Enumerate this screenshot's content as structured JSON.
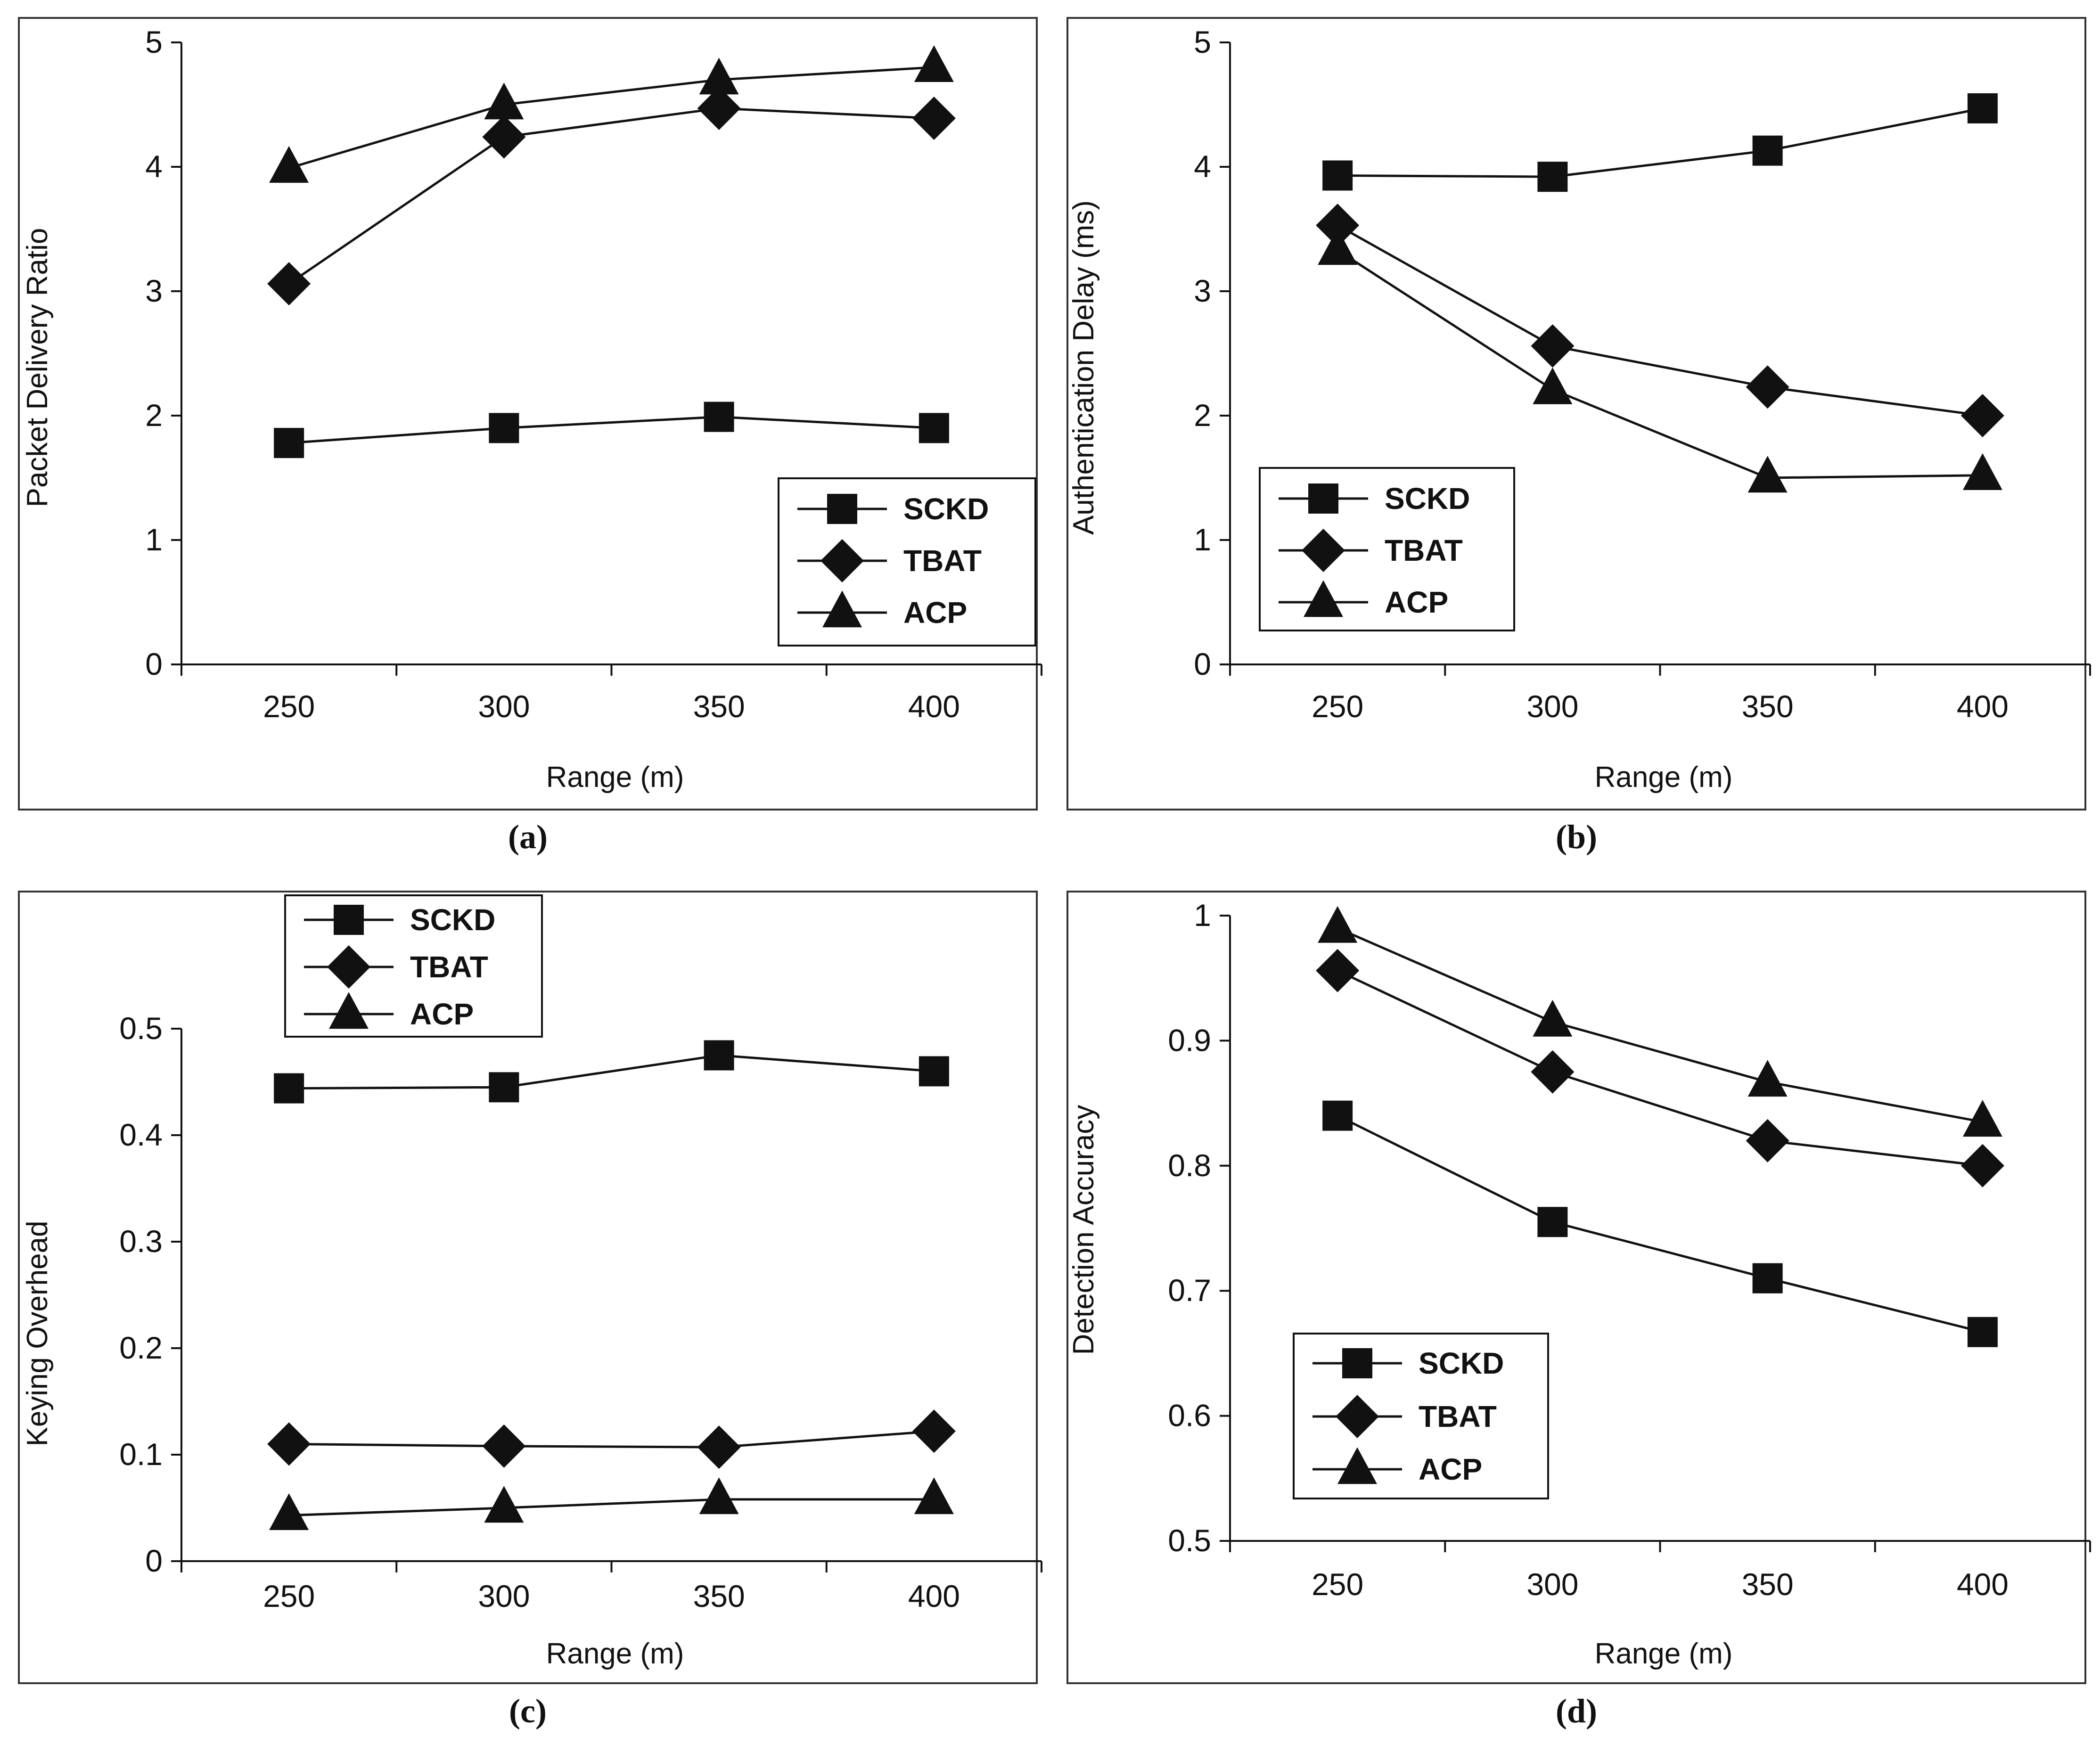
{
  "figure": {
    "chart_data": [
      {
        "panel": "a",
        "type": "line",
        "caption": "(a)",
        "title": "",
        "xlabel": "Range (m)",
        "ylabel": "Packet Delivery Ratio",
        "categories": [
          "250",
          "300",
          "350",
          "400"
        ],
        "ylim": [
          0,
          5
        ],
        "yticks": [
          "0",
          "1",
          "2",
          "3",
          "4",
          "5"
        ],
        "legend_position": "lower-right",
        "series": [
          {
            "name": "SCKD",
            "marker": "square",
            "values": [
              1.78,
              1.9,
              1.99,
              1.9
            ]
          },
          {
            "name": "TBAT",
            "marker": "diamond",
            "values": [
              3.06,
              4.24,
              4.47,
              4.39
            ]
          },
          {
            "name": "ACP",
            "marker": "triangle",
            "values": [
              3.99,
              4.5,
              4.7,
              4.8
            ]
          }
        ]
      },
      {
        "panel": "b",
        "type": "line",
        "caption": "(b)",
        "title": "",
        "xlabel": "Range (m)",
        "ylabel": "Authentication Delay (ms)",
        "categories": [
          "250",
          "300",
          "350",
          "400"
        ],
        "ylim": [
          0,
          5
        ],
        "yticks": [
          "0",
          "1",
          "2",
          "3",
          "4",
          "5"
        ],
        "legend_position": "lower-left",
        "series": [
          {
            "name": "SCKD",
            "marker": "square",
            "values": [
              3.93,
              3.92,
              4.13,
              4.47
            ]
          },
          {
            "name": "TBAT",
            "marker": "diamond",
            "values": [
              3.53,
              2.56,
              2.23,
              2.0
            ]
          },
          {
            "name": "ACP",
            "marker": "triangle",
            "values": [
              3.33,
              2.21,
              1.5,
              1.52
            ]
          }
        ]
      },
      {
        "panel": "c",
        "type": "line",
        "caption": "(c)",
        "title": "",
        "xlabel": "Range (m)",
        "ylabel": "Keying Overhead",
        "categories": [
          "250",
          "300",
          "350",
          "400"
        ],
        "ylim": [
          0,
          0.5
        ],
        "yticks": [
          "0",
          "0.1",
          "0.2",
          "0.3",
          "0.4",
          "0.5"
        ],
        "legend_position": "top-left",
        "series": [
          {
            "name": "SCKD",
            "marker": "square",
            "values": [
              0.444,
              0.445,
              0.475,
              0.46
            ]
          },
          {
            "name": "TBAT",
            "marker": "diamond",
            "values": [
              0.11,
              0.108,
              0.107,
              0.122
            ]
          },
          {
            "name": "ACP",
            "marker": "triangle",
            "values": [
              0.043,
              0.05,
              0.058,
              0.058
            ]
          }
        ]
      },
      {
        "panel": "d",
        "type": "line",
        "caption": "(d)",
        "title": "",
        "xlabel": "Range (m)",
        "ylabel": "Detection Accuracy",
        "categories": [
          "250",
          "300",
          "350",
          "400"
        ],
        "ylim": [
          0.5,
          1
        ],
        "yticks": [
          "0.5",
          "0.6",
          "0.7",
          "0.8",
          "0.9",
          "1"
        ],
        "legend_position": "lower-left",
        "series": [
          {
            "name": "SCKD",
            "marker": "square",
            "values": [
              0.84,
              0.755,
              0.71,
              0.667
            ]
          },
          {
            "name": "TBAT",
            "marker": "diamond",
            "values": [
              0.956,
              0.875,
              0.82,
              0.8
            ]
          },
          {
            "name": "ACP",
            "marker": "triangle",
            "values": [
              0.99,
              0.915,
              0.867,
              0.835
            ]
          }
        ]
      }
    ]
  }
}
